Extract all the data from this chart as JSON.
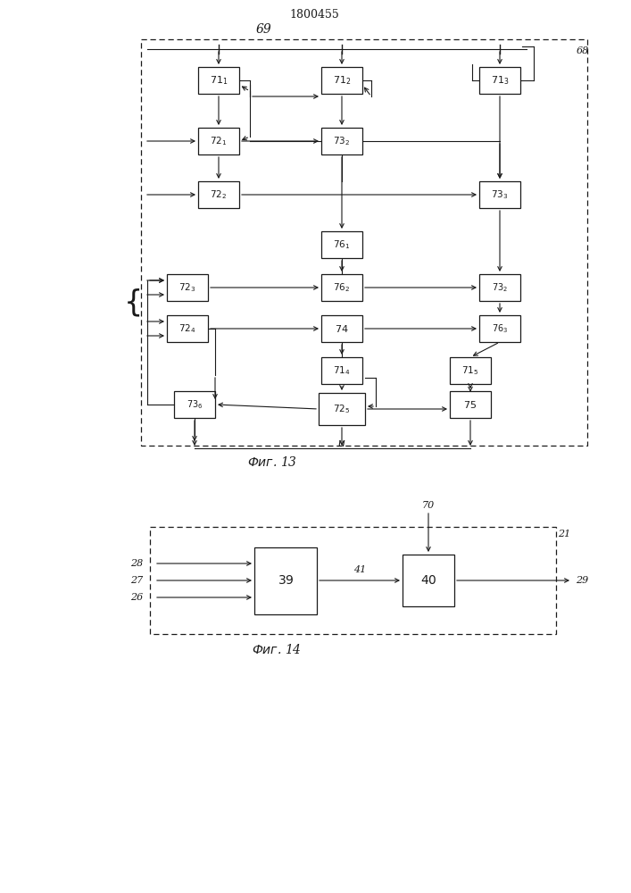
{
  "title": "1800455",
  "bg_color": "#ffffff",
  "line_color": "#1a1a1a",
  "fig_width": 7.07,
  "fig_height": 10.0
}
